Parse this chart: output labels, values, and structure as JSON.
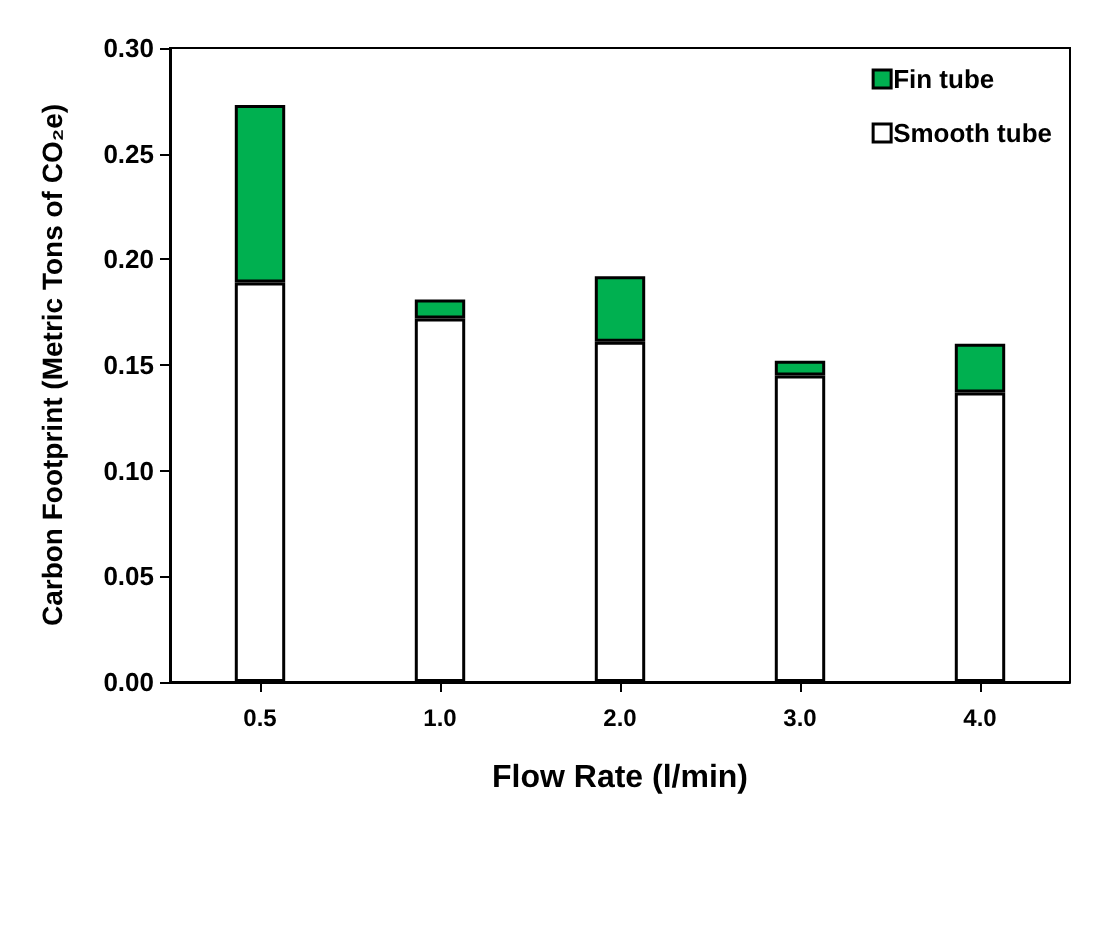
{
  "chart_data": {
    "type": "bar",
    "stacked": true,
    "xlabel": "Flow Rate (l/min)",
    "ylabel": "Carbon Footprint (Metric Tons of CO₂e)",
    "categories": [
      "0.5",
      "1.0",
      "2.0",
      "3.0",
      "4.0"
    ],
    "series": [
      {
        "name": "Smooth tube",
        "color": "#ffffff",
        "values": [
          0.189,
          0.172,
          0.161,
          0.145,
          0.137
        ]
      },
      {
        "name": "Fin tube",
        "color": "#00b050",
        "values": [
          0.084,
          0.009,
          0.031,
          0.007,
          0.023
        ]
      }
    ],
    "ylim": [
      0,
      0.3
    ],
    "yticks": [
      {
        "value": 0,
        "label": "0.00"
      },
      {
        "value": 0.05,
        "label": "0.05"
      },
      {
        "value": 0.1,
        "label": "0.10"
      },
      {
        "value": 0.15,
        "label": "0.15"
      },
      {
        "value": 0.2,
        "label": "0.20"
      },
      {
        "value": 0.25,
        "label": "0.25"
      },
      {
        "value": 0.3,
        "label": "0.30"
      }
    ],
    "legend": "top right",
    "grid": false
  }
}
